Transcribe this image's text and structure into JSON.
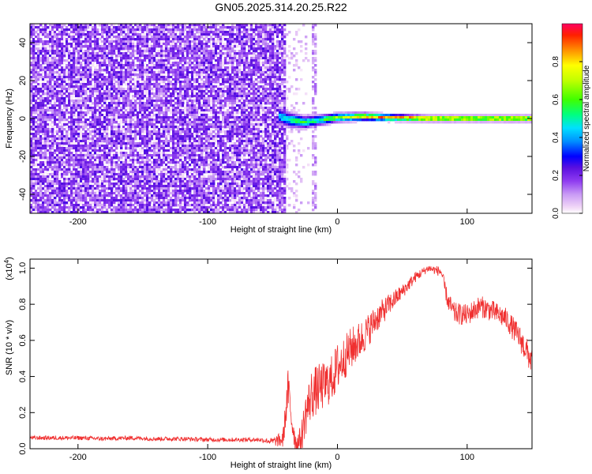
{
  "figure_title": "GN05.2025.314.20.25.R22",
  "chart_data": [
    {
      "type": "heatmap",
      "title": "GN05.2025.314.20.25.R22",
      "xlabel": "Height of straight line (km)",
      "ylabel": "Frequency (Hz)",
      "xlim": [
        -237,
        150
      ],
      "ylim": [
        -50,
        50
      ],
      "xticks": [
        -200,
        -100,
        0,
        100
      ],
      "yticks": [
        -40,
        -20,
        0,
        20,
        40
      ],
      "colorbar": {
        "label": "Normalized spectral amplitude",
        "range": [
          0,
          1
        ],
        "ticks": [
          "0.0",
          "0.2",
          "0.4",
          "0.6",
          "0.8"
        ],
        "stops": [
          {
            "v": 0.0,
            "color": "#ffffff"
          },
          {
            "v": 0.03,
            "color": "#f2d9f7"
          },
          {
            "v": 0.1,
            "color": "#c99af5"
          },
          {
            "v": 0.17,
            "color": "#8f3cf0"
          },
          {
            "v": 0.24,
            "color": "#5a10e0"
          },
          {
            "v": 0.3,
            "color": "#0000ff"
          },
          {
            "v": 0.38,
            "color": "#0090ff"
          },
          {
            "v": 0.45,
            "color": "#00e0ff"
          },
          {
            "v": 0.52,
            "color": "#00ff80"
          },
          {
            "v": 0.6,
            "color": "#40ff00"
          },
          {
            "v": 0.7,
            "color": "#c0ff00"
          },
          {
            "v": 0.78,
            "color": "#ffff00"
          },
          {
            "v": 0.86,
            "color": "#ff9000"
          },
          {
            "v": 0.94,
            "color": "#ff2000"
          },
          {
            "v": 1.0,
            "color": "#ff0060"
          }
        ]
      },
      "noise_region_x": [
        -237,
        -40
      ],
      "noise_level": 0.22,
      "ridge": [
        {
          "x": -45,
          "f": 1.0,
          "amp": 0.45,
          "width": 3.5
        },
        {
          "x": -35,
          "f": -1.0,
          "amp": 0.55,
          "width": 3.0
        },
        {
          "x": -25,
          "f": -2.0,
          "amp": 0.6,
          "width": 2.5
        },
        {
          "x": -15,
          "f": -1.0,
          "amp": 0.55,
          "width": 2.2
        },
        {
          "x": 0,
          "f": 0.5,
          "amp": 0.75,
          "width": 1.8
        },
        {
          "x": 20,
          "f": 1.0,
          "amp": 0.85,
          "width": 1.6
        },
        {
          "x": 40,
          "f": 0.5,
          "amp": 0.92,
          "width": 1.4
        },
        {
          "x": 70,
          "f": 0.0,
          "amp": 0.97,
          "width": 1.2
        },
        {
          "x": 100,
          "f": 0.0,
          "amp": 0.9,
          "width": 1.2
        },
        {
          "x": 150,
          "f": 0.0,
          "amp": 0.9,
          "width": 1.2
        }
      ],
      "vertical_streak_x": -18
    },
    {
      "type": "line",
      "xlabel": "Height of straight line (km)",
      "ylabel": "SNR (10 * v/v)",
      "yscale_label": "(x10",
      "yscale_exp": "4",
      "yscale_close": ")",
      "xlim": [
        -237,
        150
      ],
      "ylim": [
        0,
        1.05
      ],
      "xticks": [
        -200,
        -100,
        0,
        100
      ],
      "yticks": [
        "0.0",
        "0.2",
        "0.4",
        "0.6",
        "0.8",
        "1.0"
      ],
      "ytick_values": [
        0,
        0.2,
        0.4,
        0.6,
        0.8,
        1.0
      ],
      "series_color": "#f03030",
      "series": [
        {
          "x": [
            -237,
            -220,
            -200,
            -180,
            -160,
            -140,
            -120,
            -100,
            -80,
            -60,
            -50,
            -42,
            -38,
            -35,
            -32,
            -28,
            -25,
            -20,
            -15,
            -10,
            -5,
            0,
            5,
            10,
            20,
            30,
            40,
            50,
            60,
            70,
            80,
            85,
            90,
            100,
            110,
            120,
            130,
            140,
            150
          ],
          "y": [
            0.06,
            0.06,
            0.06,
            0.055,
            0.06,
            0.055,
            0.055,
            0.05,
            0.05,
            0.05,
            0.04,
            0.05,
            0.33,
            0.15,
            0.03,
            0.05,
            0.18,
            0.3,
            0.33,
            0.35,
            0.38,
            0.45,
            0.5,
            0.55,
            0.62,
            0.72,
            0.8,
            0.87,
            0.95,
            1.0,
            0.98,
            0.82,
            0.75,
            0.74,
            0.79,
            0.76,
            0.72,
            0.62,
            0.48
          ],
          "noise": [
            0.012,
            0.012,
            0.012,
            0.012,
            0.012,
            0.012,
            0.012,
            0.012,
            0.012,
            0.012,
            0.02,
            0.05,
            0.12,
            0.1,
            0.05,
            0.08,
            0.12,
            0.14,
            0.14,
            0.13,
            0.13,
            0.14,
            0.12,
            0.12,
            0.1,
            0.08,
            0.06,
            0.04,
            0.03,
            0.02,
            0.03,
            0.05,
            0.06,
            0.06,
            0.06,
            0.06,
            0.06,
            0.07,
            0.08
          ]
        }
      ]
    }
  ]
}
